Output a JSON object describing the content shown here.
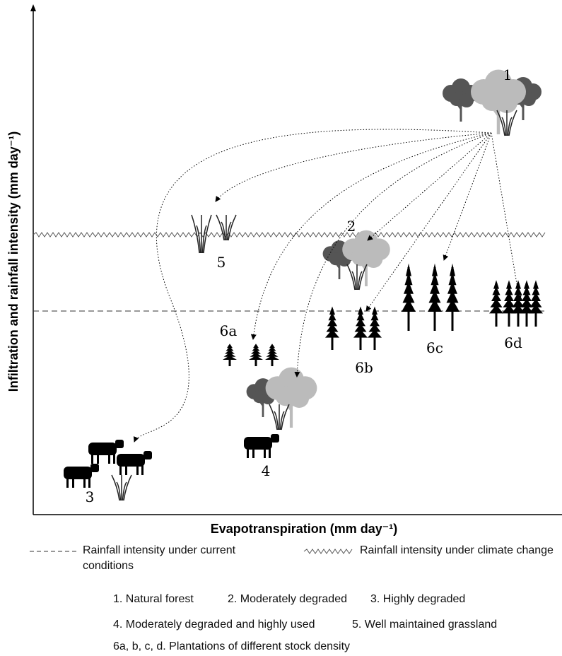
{
  "axes": {
    "x_label": "Evapotranspiration (mm day⁻¹)",
    "y_label": "Infiltration and rainfall intensity (mm day⁻¹)"
  },
  "nodes": [
    {
      "label": "1"
    },
    {
      "label": "2"
    },
    {
      "label": "3"
    },
    {
      "label": "4"
    },
    {
      "label": "5"
    },
    {
      "label": "6a"
    },
    {
      "label": "6b"
    },
    {
      "label": "6c"
    },
    {
      "label": "6d"
    }
  ],
  "legend": [
    {
      "label": "Rainfall intensity under current conditions"
    },
    {
      "label": "Rainfall intensity under climate change"
    }
  ],
  "key": [
    "1. Natural forest",
    "2. Moderately degraded",
    "3. Highly degraded",
    "4. Moderately degraded and highly used",
    "5. Well maintained grassland",
    "6a, b, c, d. Plantations of different stock density"
  ]
}
